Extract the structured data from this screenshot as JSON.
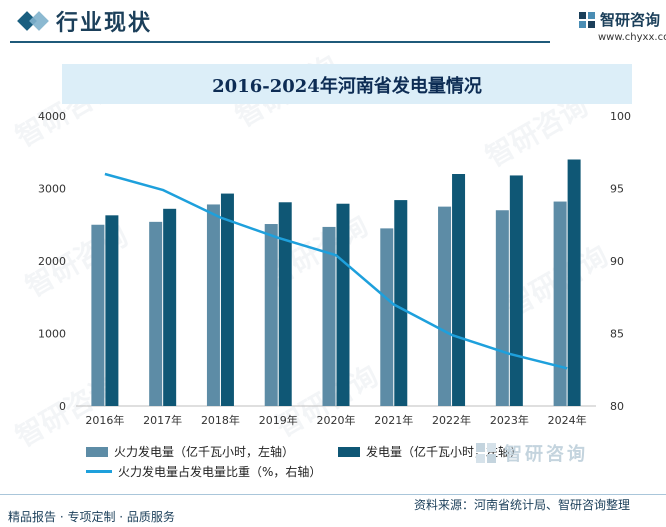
{
  "header": {
    "section_title": "行业现状",
    "brand_name": "智研咨询",
    "brand_url": "www.chyxx.com"
  },
  "chart_data": {
    "type": "bar",
    "title": "2016-2024年河南省发电量情况",
    "categories": [
      "2016年",
      "2017年",
      "2018年",
      "2019年",
      "2020年",
      "2021年",
      "2022年",
      "2023年",
      "2024年"
    ],
    "series": [
      {
        "name": "火力发电量（亿千瓦小时，左轴）",
        "type": "bar",
        "axis": "left",
        "color": "#5d8ca6",
        "values": [
          2500,
          2540,
          2780,
          2510,
          2470,
          2450,
          2750,
          2700,
          2820
        ]
      },
      {
        "name": "发电量（亿千瓦小时，左轴）",
        "type": "bar",
        "axis": "left",
        "color": "#0f5775",
        "values": [
          2630,
          2720,
          2930,
          2810,
          2790,
          2840,
          3200,
          3180,
          3400
        ]
      },
      {
        "name": "火力发电量占发电量比重（%，右轴）",
        "type": "line",
        "axis": "right",
        "color": "#1ea0dc",
        "values": [
          96.0,
          94.9,
          93.0,
          91.6,
          90.4,
          87.0,
          84.9,
          83.6,
          82.6
        ]
      }
    ],
    "left_axis": {
      "min": 0,
      "max": 4000,
      "ticks": [
        "0",
        "1000",
        "2000",
        "3000",
        "4000"
      ]
    },
    "right_axis": {
      "min": 80,
      "max": 100,
      "ticks": [
        "80",
        "85",
        "90",
        "95",
        "100"
      ]
    },
    "grid": false,
    "legend_position": "bottom"
  },
  "watermark": "智研咨询",
  "footer": {
    "left_text": "精品报告 · 专项定制 · 品质服务",
    "source_text": "资料来源：河南省统计局、智研咨询整理",
    "logo_text": "智研咨询"
  }
}
